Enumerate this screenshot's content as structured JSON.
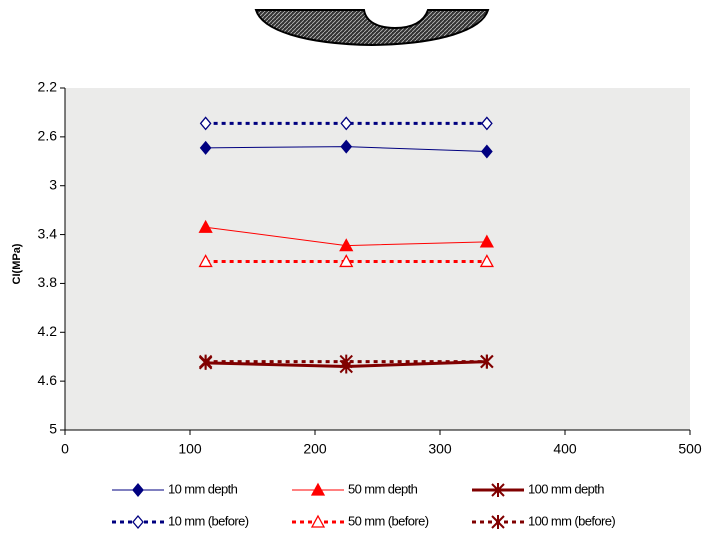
{
  "chart_data": {
    "type": "line",
    "y_label": "CI(MPa)",
    "x": [
      112.5,
      225,
      337.5
    ],
    "xlim": [
      0,
      500
    ],
    "xticks": [
      0,
      100,
      200,
      300,
      400,
      500
    ],
    "ylim": [
      2.2,
      5
    ],
    "yticks": [
      2.2,
      2.6,
      3,
      3.4,
      3.8,
      4.2,
      4.6,
      5
    ],
    "y_inverted": true,
    "legend": "bottom",
    "series": [
      {
        "name": "10 mm depth",
        "color": "#000080",
        "marker": "diamond",
        "dashed": false,
        "width": 1,
        "values": [
          2.69,
          2.68,
          2.72
        ]
      },
      {
        "name": "50 mm depth",
        "color": "#ff0000",
        "marker": "triangle",
        "dashed": false,
        "width": 1,
        "values": [
          3.34,
          3.49,
          3.46
        ]
      },
      {
        "name": "100 mm depth",
        "color": "#800000",
        "marker": "star",
        "dashed": false,
        "width": 3,
        "values": [
          4.45,
          4.48,
          4.44
        ]
      },
      {
        "name": "10 mm (before)",
        "color": "#000080",
        "marker": "diamond-open",
        "dashed": true,
        "width": 3,
        "values": [
          2.49,
          2.49,
          2.49
        ]
      },
      {
        "name": "50 mm (before)",
        "color": "#ff0000",
        "marker": "triangle-open",
        "dashed": true,
        "width": 3,
        "values": [
          3.62,
          3.62,
          3.62
        ]
      },
      {
        "name": "100 mm (before)",
        "color": "#800000",
        "marker": "star",
        "dashed": true,
        "width": 3,
        "values": [
          4.44,
          4.44,
          4.44
        ]
      }
    ]
  }
}
